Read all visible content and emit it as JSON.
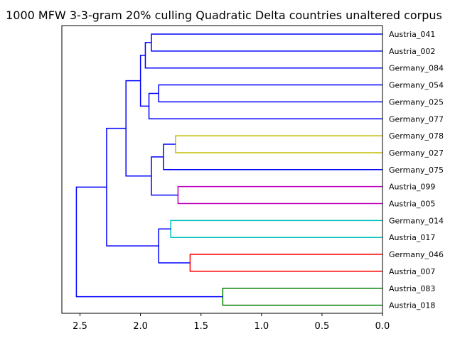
{
  "chart_data": {
    "type": "dendrogram",
    "title": "1000 MFW 3-3-gram 20% culling Quadratic Delta countries unaltered corpus",
    "orientation": "left",
    "xlabel": "",
    "ylabel": "",
    "xlim": [
      2.65,
      0.0
    ],
    "xticks": [
      2.5,
      2.0,
      1.5,
      1.0,
      0.5,
      0.0
    ],
    "xtick_labels": [
      "2.5",
      "2.0",
      "1.5",
      "1.0",
      "0.5",
      "0.0"
    ],
    "leaves": [
      "Austria_041",
      "Austria_002",
      "Germany_084",
      "Germany_054",
      "Germany_025",
      "Germany_077",
      "Germany_078",
      "Germany_027",
      "Germany_075",
      "Austria_099",
      "Austria_005",
      "Germany_014",
      "Austria_017",
      "Germany_046",
      "Austria_007",
      "Austria_083",
      "Austria_018"
    ],
    "colors": {
      "blue": "#0000ff",
      "olive": "#bfbf00",
      "magenta": "#bf00bf",
      "cyan": "#00bfbf",
      "red": "#ff0000",
      "green": "#008000"
    },
    "merges": [
      {
        "id": "m0",
        "a": "L0",
        "b": "L1",
        "height": 1.91,
        "color": "blue"
      },
      {
        "id": "m1",
        "a": "m0",
        "b": "L2",
        "height": 1.96,
        "color": "blue"
      },
      {
        "id": "m2",
        "a": "L3",
        "b": "L4",
        "height": 1.85,
        "color": "blue"
      },
      {
        "id": "m3",
        "a": "m2",
        "b": "L5",
        "height": 1.93,
        "color": "blue"
      },
      {
        "id": "m4",
        "a": "m1",
        "b": "m3",
        "height": 2.0,
        "color": "blue"
      },
      {
        "id": "m5",
        "a": "L6",
        "b": "L7",
        "height": 1.71,
        "color": "olive"
      },
      {
        "id": "m6",
        "a": "m5",
        "b": "L8",
        "height": 1.81,
        "color": "blue"
      },
      {
        "id": "m7",
        "a": "L9",
        "b": "L10",
        "height": 1.69,
        "color": "magenta"
      },
      {
        "id": "m8",
        "a": "m6",
        "b": "m7",
        "height": 1.91,
        "color": "blue"
      },
      {
        "id": "m9",
        "a": "m4",
        "b": "m8",
        "height": 2.12,
        "color": "blue"
      },
      {
        "id": "m10",
        "a": "L11",
        "b": "L12",
        "height": 1.75,
        "color": "cyan"
      },
      {
        "id": "m11",
        "a": "L13",
        "b": "L14",
        "height": 1.59,
        "color": "red"
      },
      {
        "id": "m12",
        "a": "m10",
        "b": "m11",
        "height": 1.85,
        "color": "blue"
      },
      {
        "id": "m13",
        "a": "m9",
        "b": "m12",
        "height": 2.28,
        "color": "blue"
      },
      {
        "id": "m14",
        "a": "L15",
        "b": "L16",
        "height": 1.32,
        "color": "green"
      },
      {
        "id": "m15",
        "a": "m13",
        "b": "m14",
        "height": 2.53,
        "color": "blue"
      }
    ]
  }
}
